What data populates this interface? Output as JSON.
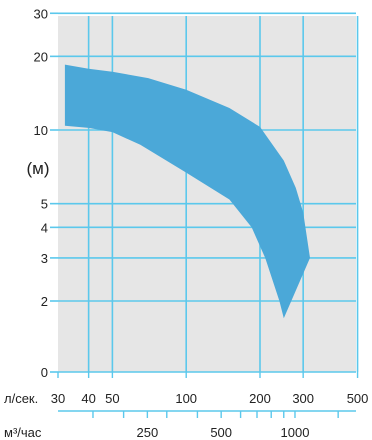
{
  "chart_data": {
    "type": "area",
    "title": "",
    "ylabel": "(м)",
    "y_scale": "log",
    "x_scale": "log",
    "grid": true,
    "colors": {
      "plot_bg": "#e6e6e6",
      "grid": "#5bc8ec",
      "fill": "#4ba8d8",
      "text": "#222222"
    },
    "y_ticks": [
      "30",
      "20",
      "10",
      "5",
      "4",
      "3",
      "2",
      "0"
    ],
    "x_axis_primary": {
      "label": "л/сек.",
      "ticks": [
        "30",
        "40",
        "50",
        "100",
        "200",
        "300",
        "500"
      ]
    },
    "x_axis_secondary": {
      "label": "м³/час",
      "ticks": [
        "250",
        "500",
        "1000"
      ]
    },
    "series": [
      {
        "upper_boundary": [
          {
            "x": 32,
            "y": 18.5
          },
          {
            "x": 40,
            "y": 17.8
          },
          {
            "x": 50,
            "y": 17.3
          },
          {
            "x": 70,
            "y": 16.3
          },
          {
            "x": 100,
            "y": 14.6
          },
          {
            "x": 150,
            "y": 12.3
          },
          {
            "x": 200,
            "y": 10.3
          },
          {
            "x": 250,
            "y": 7.5
          },
          {
            "x": 280,
            "y": 5.8
          },
          {
            "x": 300,
            "y": 4.6
          },
          {
            "x": 320,
            "y": 3.0
          }
        ],
        "lower_boundary": [
          {
            "x": 32,
            "y": 10.4
          },
          {
            "x": 40,
            "y": 10.2
          },
          {
            "x": 50,
            "y": 9.8
          },
          {
            "x": 65,
            "y": 8.7
          },
          {
            "x": 100,
            "y": 6.7
          },
          {
            "x": 150,
            "y": 5.2
          },
          {
            "x": 185,
            "y": 4.0
          },
          {
            "x": 210,
            "y": 3.0
          },
          {
            "x": 240,
            "y": 2.0
          },
          {
            "x": 250,
            "y": 1.7
          }
        ]
      }
    ]
  }
}
